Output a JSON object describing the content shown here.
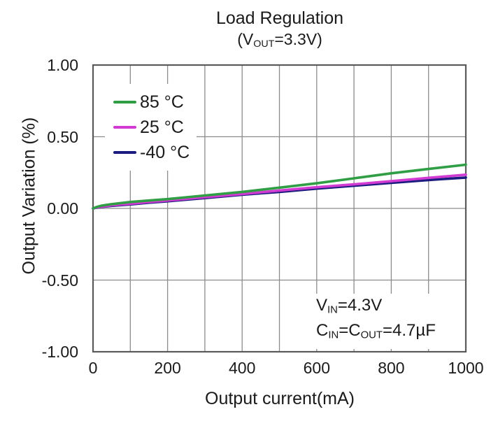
{
  "chart_data": {
    "type": "line",
    "title": "Load Regulation",
    "subtitle": "(V_OUT=3.3V)",
    "subtitle_rich": [
      {
        "t": "(V"
      },
      {
        "s": "OUT"
      },
      {
        "t": "=3.3V)"
      }
    ],
    "xlabel": "Output current(mA)",
    "ylabel": "Output Variation (%)",
    "xlim": [
      0,
      1000
    ],
    "ylim": [
      -1.0,
      1.0
    ],
    "x_minor_step": 100,
    "grid": true,
    "legend_position": "upper-left-inside",
    "x_ticks": {
      "values": [
        0,
        200,
        400,
        600,
        800,
        1000
      ],
      "labels": [
        "0",
        "200",
        "400",
        "600",
        "800",
        "1000"
      ]
    },
    "y_ticks": {
      "values": [
        1.0,
        0.5,
        0.0,
        -0.5,
        -1.0
      ],
      "labels": [
        "1.00",
        "0.50",
        "0.00",
        "-0.50",
        "-1.00"
      ]
    },
    "series": [
      {
        "key": "85c",
        "name": "85 °C",
        "color": "#2f9e44",
        "x": [
          0,
          10,
          25,
          50,
          100,
          150,
          200,
          300,
          400,
          500,
          600,
          700,
          800,
          900,
          1000
        ],
        "y": [
          0.0,
          0.01,
          0.02,
          0.03,
          0.045,
          0.055,
          0.065,
          0.09,
          0.115,
          0.145,
          0.175,
          0.21,
          0.245,
          0.275,
          0.305
        ]
      },
      {
        "key": "25c",
        "name": "25 °C",
        "color": "#d23bd2",
        "x": [
          0,
          10,
          25,
          50,
          100,
          150,
          200,
          300,
          400,
          500,
          600,
          700,
          800,
          900,
          1000
        ],
        "y": [
          0.0,
          0.007,
          0.013,
          0.022,
          0.032,
          0.045,
          0.055,
          0.078,
          0.1,
          0.125,
          0.148,
          0.168,
          0.19,
          0.213,
          0.235
        ]
      },
      {
        "key": "n40c",
        "name": "-40 °C",
        "color": "#1c1c80",
        "x": [
          0,
          10,
          25,
          50,
          100,
          150,
          200,
          300,
          400,
          500,
          600,
          700,
          800,
          900,
          1000
        ],
        "y": [
          0.0,
          0.005,
          0.011,
          0.018,
          0.028,
          0.04,
          0.05,
          0.072,
          0.095,
          0.115,
          0.138,
          0.158,
          0.178,
          0.198,
          0.215
        ]
      }
    ],
    "annotation_lines": [
      "V_IN=4.3V",
      "C_IN=C_OUT=4.7µF"
    ],
    "annotation_rich": {
      "line1": [
        {
          "t": "V"
        },
        {
          "s": "IN"
        },
        {
          "t": "=4.3V"
        }
      ],
      "line2": [
        {
          "t": "C"
        },
        {
          "s": "IN"
        },
        {
          "t": "=C"
        },
        {
          "s": "OUT"
        },
        {
          "t": "=4.7µF"
        }
      ]
    }
  },
  "colors": {
    "background": "#ffffff",
    "grid": "#8c8c8c",
    "border": "#5a5a5a",
    "text": "#1a1a1a",
    "series_85c": "#2f9e44",
    "series_25c": "#d23bd2",
    "series_n40c": "#1c1c80"
  }
}
